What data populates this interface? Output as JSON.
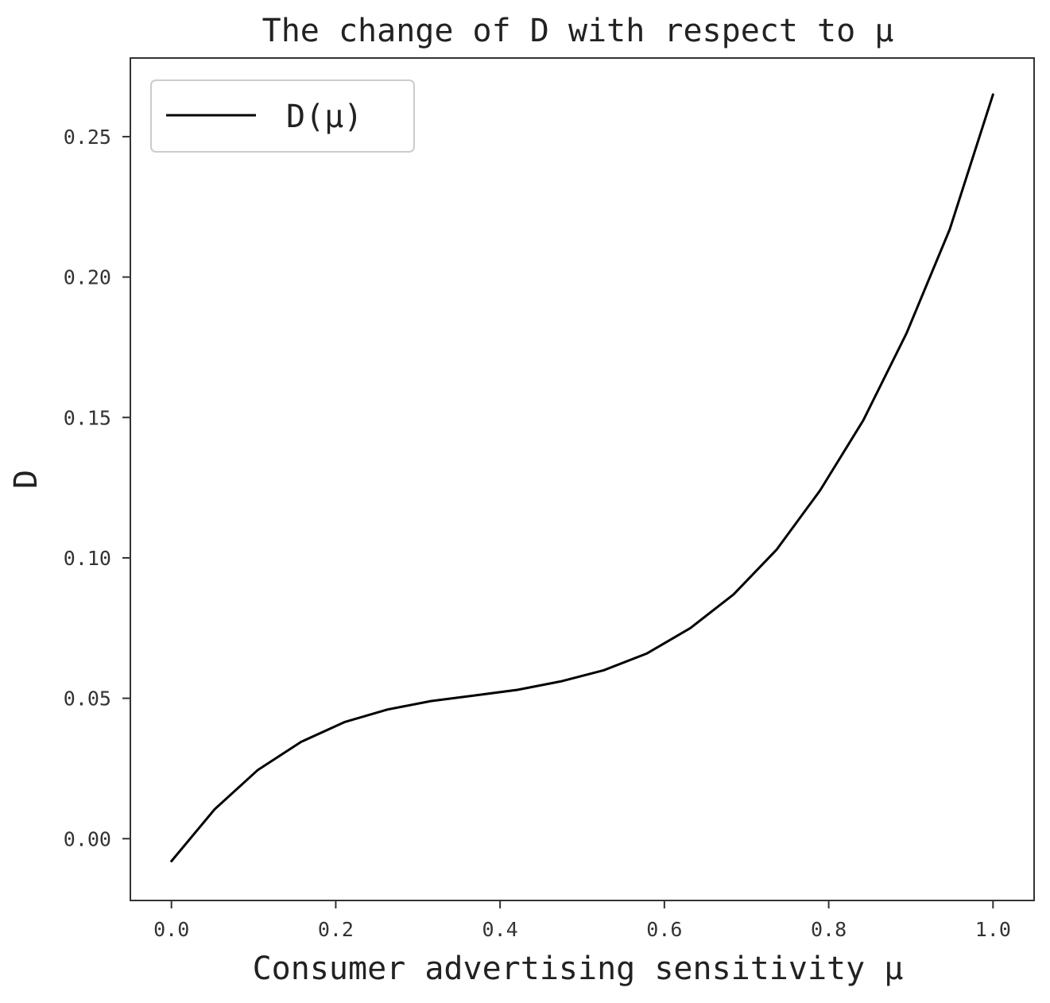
{
  "chart_data": {
    "type": "line",
    "title": "The change of D with respect to μ",
    "xlabel": "Consumer advertising sensitivity μ",
    "ylabel": "D",
    "xlim": [
      -0.05,
      1.05
    ],
    "ylim": [
      -0.022,
      0.278
    ],
    "x_ticks": [
      0.0,
      0.2,
      0.4,
      0.6,
      0.8,
      1.0
    ],
    "x_tick_labels": [
      "0.0",
      "0.2",
      "0.4",
      "0.6",
      "0.8",
      "1.0"
    ],
    "y_ticks": [
      0.0,
      0.05,
      0.1,
      0.15,
      0.2,
      0.25
    ],
    "y_tick_labels": [
      "0.00",
      "0.05",
      "0.10",
      "0.15",
      "0.20",
      "0.25"
    ],
    "grid": false,
    "legend": {
      "position": "top-left",
      "entries": [
        "D(μ)"
      ]
    },
    "series": [
      {
        "name": "D(μ)",
        "color": "#000000",
        "x": [
          0.0,
          0.0526,
          0.1053,
          0.1579,
          0.2105,
          0.2632,
          0.3158,
          0.3684,
          0.4211,
          0.4737,
          0.5263,
          0.5789,
          0.6316,
          0.6842,
          0.7368,
          0.7895,
          0.8421,
          0.8947,
          0.9474,
          1.0
        ],
        "y": [
          -0.008,
          0.0105,
          0.0245,
          0.0345,
          0.0415,
          0.046,
          0.049,
          0.051,
          0.053,
          0.056,
          0.06,
          0.066,
          0.075,
          0.087,
          0.103,
          0.124,
          0.149,
          0.18,
          0.217,
          0.265
        ]
      }
    ]
  }
}
